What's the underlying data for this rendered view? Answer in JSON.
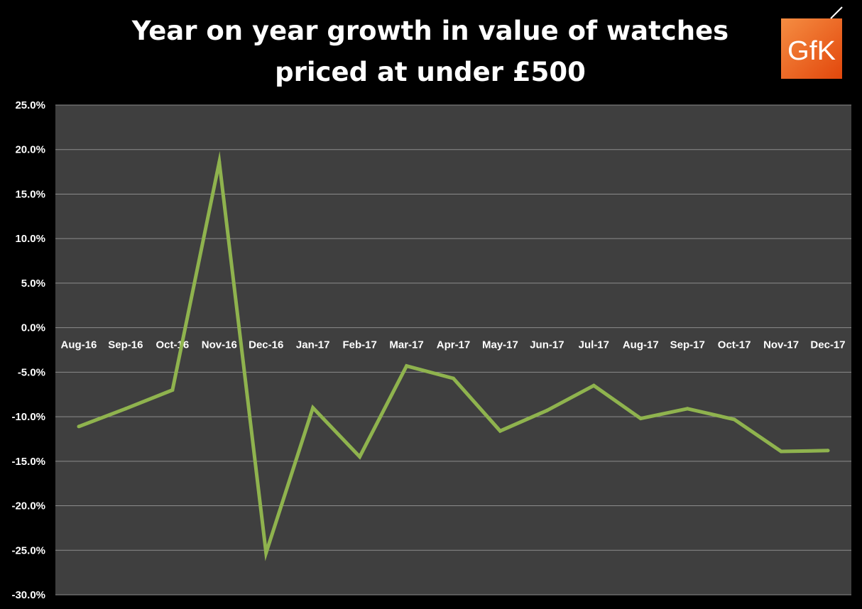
{
  "chart_data": {
    "type": "line",
    "title_lines": [
      "Year on year growth in value of watches",
      "priced at under £500"
    ],
    "categories": [
      "Aug-16",
      "Sep-16",
      "Oct-16",
      "Nov-16",
      "Dec-16",
      "Jan-17",
      "Feb-17",
      "Mar-17",
      "Apr-17",
      "May-17",
      "Jun-17",
      "Jul-17",
      "Aug-17",
      "Sep-17",
      "Oct-17",
      "Nov-17",
      "Dec-17"
    ],
    "series": [
      {
        "values": [
          -11.1,
          -9.1,
          -7.0,
          18.6,
          -25.3,
          -9.0,
          -14.5,
          -4.3,
          -5.7,
          -11.6,
          -9.3,
          -6.5,
          -10.2,
          -9.1,
          -10.3,
          -13.9,
          -13.8
        ]
      }
    ],
    "y_ticks": [
      "25.0%",
      "20.0%",
      "15.0%",
      "10.0%",
      "5.0%",
      "0.0%",
      "-5.0%",
      "-10.0%",
      "-15.0%",
      "-20.0%",
      "-25.0%",
      "-30.0%"
    ],
    "ylim": [
      -30,
      25
    ],
    "y_step": 5,
    "grid": true,
    "colors": {
      "background": "#000000",
      "plot_area": "#3f3f3f",
      "gridline": "#8c8c8c",
      "line": "#8fb34e",
      "text": "#ffffff"
    }
  },
  "logo": {
    "text": "GfK",
    "colors": {
      "top": "#f58d42",
      "bottom": "#e2470c"
    }
  }
}
